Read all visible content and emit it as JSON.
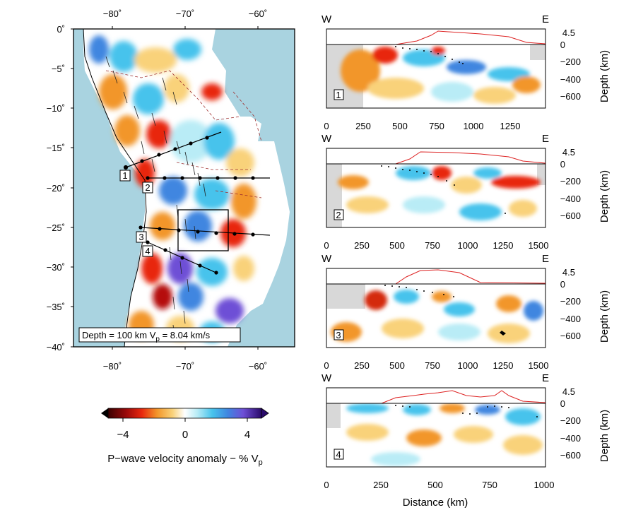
{
  "map": {
    "top_lon_ticks": [
      "−80˚",
      "−70˚",
      "−60˚"
    ],
    "bottom_lon_ticks": [
      "−80˚",
      "−70˚",
      "−60˚"
    ],
    "lat_ticks": [
      "0˚",
      "−5˚",
      "−10˚",
      "−15˚",
      "−20˚",
      "−25˚",
      "−30˚",
      "−35˚",
      "−40˚"
    ],
    "depth_caption": "Depth = 100 km V",
    "depth_caption_sub": "p",
    "depth_caption_tail": " = 8.04 km/s",
    "profile_numbers": [
      "1",
      "2",
      "3",
      "4"
    ]
  },
  "colorbar": {
    "ticks": [
      "−4",
      "0",
      "4"
    ],
    "label": "P−wave velocity anomaly − % V",
    "label_sub": "p"
  },
  "sections": [
    {
      "id": "1",
      "west": "W",
      "east": "E",
      "elev": "4.5",
      "depth_ticks": [
        "0",
        "−200",
        "−400",
        "−600"
      ],
      "dist_ticks": [
        "0",
        "250",
        "500",
        "750",
        "1000",
        "1250"
      ],
      "ylabel": "Depth (km)"
    },
    {
      "id": "2",
      "west": "W",
      "east": "E",
      "elev": "4.5",
      "depth_ticks": [
        "0",
        "−200",
        "−400",
        "−600"
      ],
      "dist_ticks": [
        "0",
        "250",
        "500",
        "750",
        "1000",
        "1250",
        "1500"
      ],
      "ylabel": "Depth (km)"
    },
    {
      "id": "3",
      "west": "W",
      "east": "E",
      "elev": "4.5",
      "depth_ticks": [
        "0",
        "−200",
        "−400",
        "−600"
      ],
      "dist_ticks": [
        "0",
        "250",
        "500",
        "750",
        "1000",
        "1250",
        "1500"
      ],
      "ylabel": "Depth (km)"
    },
    {
      "id": "4",
      "west": "W",
      "east": "E",
      "elev": "4.5",
      "depth_ticks": [
        "0",
        "−200",
        "−400",
        "−600"
      ],
      "dist_ticks": [
        "0",
        "250",
        "500",
        "750",
        "1000"
      ],
      "ylabel": "Depth (km)"
    }
  ],
  "xlabel": "Distance (km)",
  "colors": {
    "ocean": "#a9d3e0",
    "land": "#d8d8d8",
    "topo": "#dd2222",
    "strong_red": "#d42a10",
    "orange": "#f29a2a",
    "yellow": "#f7d58f",
    "cyan": "#bfe8f4",
    "blue": "#4fb0e6"
  }
}
